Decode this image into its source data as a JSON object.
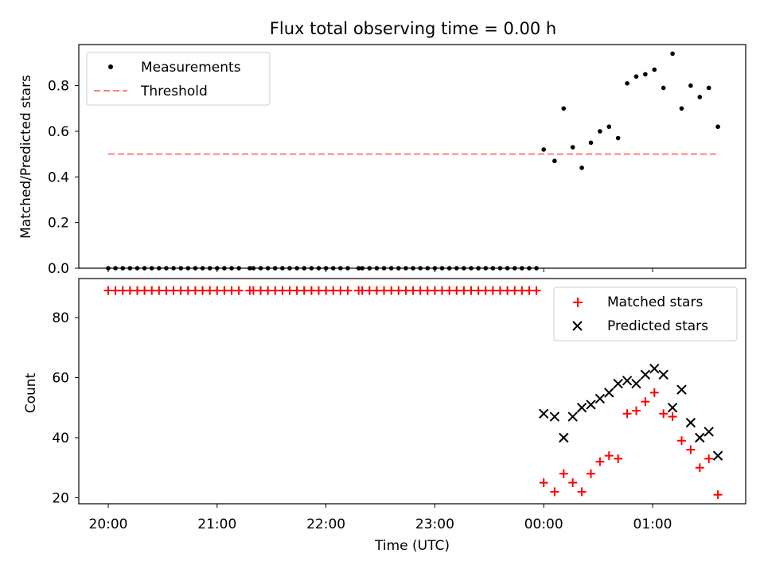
{
  "figure": {
    "title": "Flux total observing time = 0.00 h"
  },
  "colors": {
    "matched": "#ff0000",
    "predicted": "#000000",
    "threshold": "#ff7f7f",
    "measurement": "#000000"
  },
  "chart_data": [
    {
      "type": "scatter",
      "panel": "top",
      "ylabel": "Matched/Predicted stars",
      "ylim": [
        0,
        0.98
      ],
      "yticks": [
        0.0,
        0.2,
        0.4,
        0.6,
        0.8
      ],
      "ytick_labels": [
        "0.0",
        "0.2",
        "0.4",
        "0.6",
        "0.8"
      ],
      "legend": {
        "position": "upper-left",
        "entries": [
          "Measurements",
          "Threshold"
        ]
      },
      "threshold": {
        "name": "Threshold",
        "y": 0.5,
        "x_start": "20:00",
        "x_end": "01:35",
        "style": "dashed"
      },
      "series": [
        {
          "name": "Measurements",
          "marker": "dot",
          "x": [
            "20:00",
            "20:04",
            "20:08",
            "20:12",
            "20:16",
            "20:20",
            "20:24",
            "20:28",
            "20:32",
            "20:36",
            "20:40",
            "20:44",
            "20:48",
            "20:52",
            "20:56",
            "21:00",
            "21:04",
            "21:08",
            "21:12",
            "21:18",
            "21:20",
            "21:24",
            "21:28",
            "21:32",
            "21:36",
            "21:40",
            "21:44",
            "21:48",
            "21:52",
            "21:56",
            "22:00",
            "22:04",
            "22:08",
            "22:12",
            "22:18",
            "22:20",
            "22:24",
            "22:28",
            "22:32",
            "22:36",
            "22:40",
            "22:44",
            "22:48",
            "22:52",
            "22:56",
            "23:00",
            "23:04",
            "23:08",
            "23:12",
            "23:16",
            "23:20",
            "23:24",
            "23:28",
            "23:32",
            "23:36",
            "23:40",
            "23:44",
            "23:48",
            "23:52",
            "23:56",
            "00:00",
            "00:06",
            "00:11",
            "00:16",
            "00:21",
            "00:26",
            "00:31",
            "00:36",
            "00:41",
            "00:46",
            "00:51",
            "00:56",
            "01:01",
            "01:06",
            "01:11",
            "01:16",
            "01:21",
            "01:26",
            "01:31",
            "01:36"
          ],
          "y": [
            0,
            0,
            0,
            0,
            0,
            0,
            0,
            0,
            0,
            0,
            0,
            0,
            0,
            0,
            0,
            0,
            0,
            0,
            0,
            0,
            0,
            0,
            0,
            0,
            0,
            0,
            0,
            0,
            0,
            0,
            0,
            0,
            0,
            0,
            0,
            0,
            0,
            0,
            0,
            0,
            0,
            0,
            0,
            0,
            0,
            0,
            0,
            0,
            0,
            0,
            0,
            0,
            0,
            0,
            0,
            0,
            0,
            0,
            0,
            0,
            0.52,
            0.47,
            0.7,
            0.53,
            0.44,
            0.55,
            0.6,
            0.62,
            0.57,
            0.81,
            0.84,
            0.85,
            0.87,
            0.79,
            0.94,
            0.7,
            0.8,
            0.75,
            0.79,
            0.62
          ]
        }
      ],
      "xticks": [
        "20:00",
        "21:00",
        "22:00",
        "23:00",
        "00:00",
        "01:00"
      ]
    },
    {
      "type": "scatter",
      "panel": "bottom",
      "xlabel": "Time (UTC)",
      "ylabel": "Count",
      "ylim": [
        18,
        93
      ],
      "yticks": [
        20,
        40,
        60,
        80
      ],
      "ytick_labels": [
        "20",
        "40",
        "60",
        "80"
      ],
      "xticks": [
        "20:00",
        "21:00",
        "22:00",
        "23:00",
        "00:00",
        "01:00"
      ],
      "legend": {
        "position": "upper-right",
        "entries": [
          "Matched stars",
          "Predicted stars"
        ]
      },
      "series": [
        {
          "name": "Matched stars",
          "marker": "plus",
          "x": [
            "20:00",
            "20:04",
            "20:08",
            "20:12",
            "20:16",
            "20:20",
            "20:24",
            "20:28",
            "20:32",
            "20:36",
            "20:40",
            "20:44",
            "20:48",
            "20:52",
            "20:56",
            "21:00",
            "21:04",
            "21:08",
            "21:12",
            "21:18",
            "21:20",
            "21:24",
            "21:28",
            "21:32",
            "21:36",
            "21:40",
            "21:44",
            "21:48",
            "21:52",
            "21:56",
            "22:00",
            "22:04",
            "22:08",
            "22:12",
            "22:18",
            "22:20",
            "22:24",
            "22:28",
            "22:32",
            "22:36",
            "22:40",
            "22:44",
            "22:48",
            "22:52",
            "22:56",
            "23:00",
            "23:04",
            "23:08",
            "23:12",
            "23:16",
            "23:20",
            "23:24",
            "23:28",
            "23:32",
            "23:36",
            "23:40",
            "23:44",
            "23:48",
            "23:52",
            "23:56",
            "00:00",
            "00:06",
            "00:11",
            "00:16",
            "00:21",
            "00:26",
            "00:31",
            "00:36",
            "00:41",
            "00:46",
            "00:51",
            "00:56",
            "01:01",
            "01:06",
            "01:11",
            "01:16",
            "01:21",
            "01:26",
            "01:31",
            "01:36"
          ],
          "y": [
            89,
            89,
            89,
            89,
            89,
            89,
            89,
            89,
            89,
            89,
            89,
            89,
            89,
            89,
            89,
            89,
            89,
            89,
            89,
            89,
            89,
            89,
            89,
            89,
            89,
            89,
            89,
            89,
            89,
            89,
            89,
            89,
            89,
            89,
            89,
            89,
            89,
            89,
            89,
            89,
            89,
            89,
            89,
            89,
            89,
            89,
            89,
            89,
            89,
            89,
            89,
            89,
            89,
            89,
            89,
            89,
            89,
            89,
            89,
            89,
            25,
            22,
            28,
            25,
            22,
            28,
            32,
            34,
            33,
            48,
            49,
            52,
            55,
            48,
            47,
            39,
            36,
            30,
            33,
            21
          ]
        },
        {
          "name": "Predicted stars",
          "marker": "x",
          "x": [
            "00:00",
            "00:06",
            "00:11",
            "00:16",
            "00:21",
            "00:26",
            "00:31",
            "00:36",
            "00:41",
            "00:46",
            "00:51",
            "00:56",
            "01:01",
            "01:06",
            "01:11",
            "01:16",
            "01:21",
            "01:26",
            "01:31",
            "01:36"
          ],
          "y": [
            48,
            47,
            40,
            47,
            50,
            51,
            53,
            55,
            58,
            59,
            58,
            61,
            63,
            61,
            50,
            56,
            45,
            40,
            42,
            34
          ]
        }
      ]
    }
  ]
}
